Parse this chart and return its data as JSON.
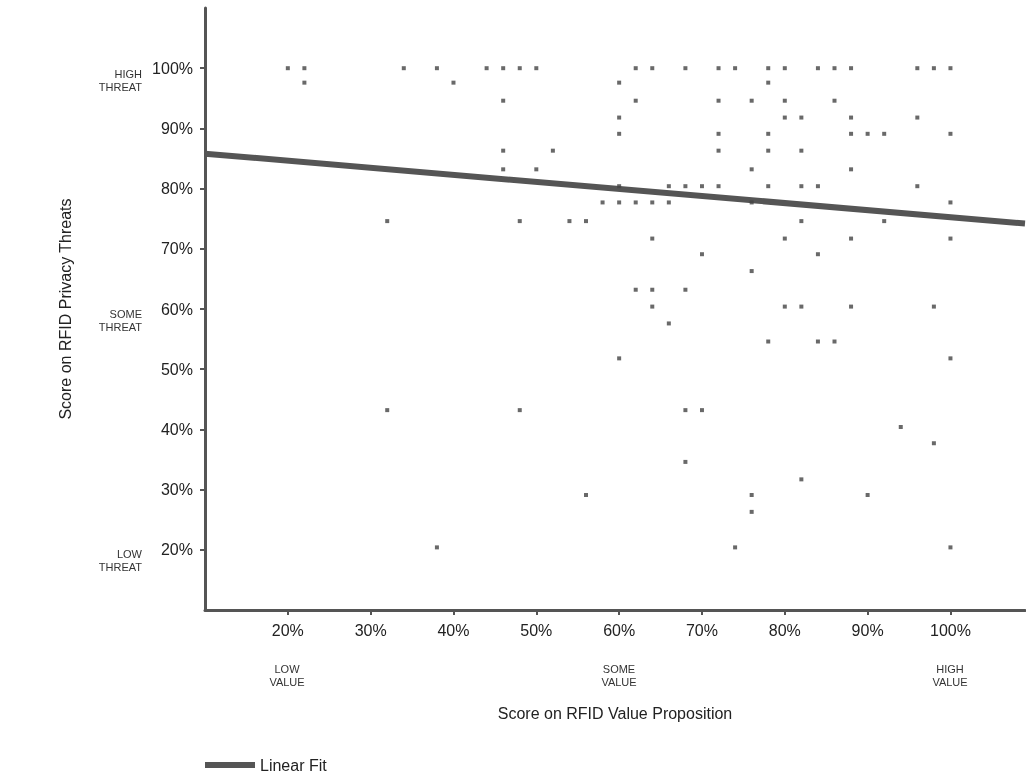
{
  "chart_data": {
    "type": "scatter",
    "xlabel": "Score on RFID Value Proposition",
    "ylabel": "Score on RFID Privacy Threats",
    "xlim": [
      10,
      109
    ],
    "ylim": [
      10,
      110
    ],
    "xticks": [
      {
        "value": 20,
        "label": "20%"
      },
      {
        "value": 30,
        "label": "30%"
      },
      {
        "value": 40,
        "label": "40%"
      },
      {
        "value": 50,
        "label": "50%"
      },
      {
        "value": 60,
        "label": "60%"
      },
      {
        "value": 70,
        "label": "70%"
      },
      {
        "value": 80,
        "label": "80%"
      },
      {
        "value": 90,
        "label": "90%"
      },
      {
        "value": 100,
        "label": "100%"
      }
    ],
    "yticks": [
      {
        "value": 20,
        "label": "20%"
      },
      {
        "value": 30,
        "label": "30%"
      },
      {
        "value": 40,
        "label": "40%"
      },
      {
        "value": 50,
        "label": "50%"
      },
      {
        "value": 60,
        "label": "60%"
      },
      {
        "value": 70,
        "label": "70%"
      },
      {
        "value": 80,
        "label": "80%"
      },
      {
        "value": 90,
        "label": "90%"
      },
      {
        "value": 100,
        "label": "100%"
      }
    ],
    "grid": false,
    "legend": "bottom left",
    "annotations": [
      "HIGH\nTHREAT",
      "SOME\nTHREAT",
      "LOW\nTHREAT",
      "LOW\nVALUE",
      "SOME\nVALUE",
      "HIGH\nVALUE"
    ],
    "series": [
      {
        "color": "#444444",
        "marker": "square",
        "x": [
          20,
          22,
          34,
          38,
          44,
          46,
          48,
          50,
          62,
          64,
          68,
          72,
          74,
          78,
          80,
          84,
          86,
          88,
          96,
          98,
          100,
          22,
          40,
          60,
          78,
          46,
          62,
          72,
          76,
          80,
          86,
          60,
          80,
          82,
          88,
          96,
          60,
          72,
          78,
          88,
          90,
          92,
          100,
          46,
          52,
          72,
          78,
          82,
          46,
          50,
          76,
          88,
          60,
          66,
          68,
          70,
          72,
          78,
          82,
          84,
          96,
          58,
          60,
          62,
          64,
          66,
          76,
          100,
          32,
          48,
          54,
          56,
          82,
          92,
          64,
          80,
          88,
          100,
          70,
          84,
          76,
          62,
          64,
          68,
          64,
          80,
          82,
          88,
          98,
          66,
          78,
          84,
          86,
          60,
          100,
          32,
          48,
          68,
          70,
          94,
          98,
          68,
          82,
          56,
          76,
          90,
          76,
          38,
          74,
          100
        ],
        "values": [
          100,
          100,
          100,
          100,
          100,
          100,
          100,
          100,
          100,
          100,
          100,
          100,
          100,
          100,
          100,
          100,
          100,
          100,
          100,
          100,
          100,
          97.6,
          97.6,
          97.6,
          97.6,
          94.6,
          94.6,
          94.6,
          94.6,
          94.6,
          94.6,
          91.8,
          91.8,
          91.8,
          91.8,
          91.8,
          89.1,
          89.1,
          89.1,
          89.1,
          89.1,
          89.1,
          89.1,
          86.3,
          86.3,
          86.3,
          86.3,
          86.3,
          83.2,
          83.2,
          83.2,
          83.2,
          80.4,
          80.4,
          80.4,
          80.4,
          80.4,
          80.4,
          80.4,
          80.4,
          80.4,
          77.7,
          77.7,
          77.7,
          77.7,
          77.7,
          77.7,
          77.7,
          74.6,
          74.6,
          74.6,
          74.6,
          74.6,
          74.6,
          71.7,
          71.7,
          71.7,
          71.7,
          69.1,
          69.1,
          66.3,
          63.2,
          63.2,
          63.2,
          60.4,
          60.4,
          60.4,
          60.4,
          60.4,
          57.6,
          54.6,
          54.6,
          54.6,
          51.8,
          51.8,
          43.2,
          43.2,
          43.2,
          43.2,
          40.4,
          37.7,
          34.6,
          31.7,
          29.1,
          29.1,
          29.1,
          26.3,
          20.4,
          20.4,
          20.4
        ]
      },
      {
        "type": "line",
        "name": "Linear Fit",
        "color": "#555555",
        "x": [
          10,
          109
        ],
        "values": [
          85.8,
          74.2
        ]
      }
    ]
  }
}
